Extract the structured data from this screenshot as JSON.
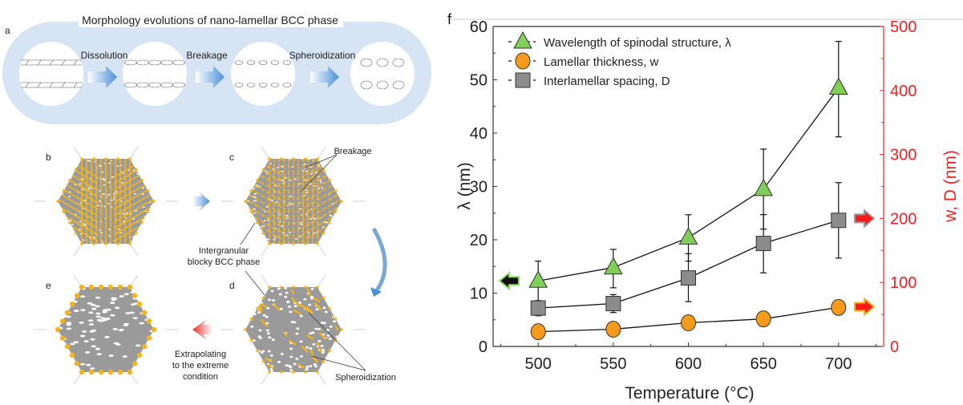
{
  "left_panel": {
    "title": "Morphology evolutions of nano-lamellar BCC phase",
    "panel_labels": {
      "a": "a",
      "b": "b",
      "c": "c",
      "d": "d",
      "e": "e"
    },
    "steps": [
      "Dissolution",
      "Breakage",
      "Spheroidization"
    ],
    "annotations": {
      "breakage": "Breakage",
      "intergranular_line1": "Intergranular",
      "intergranular_line2": "blocky BCC phase",
      "extrapolating_line1": "Extrapolating",
      "extrapolating_line2": "to the extreme",
      "extrapolating_line3": "condition",
      "spheroidization": "Spheroidization"
    },
    "colors": {
      "capsule": "#d6e4f3",
      "lamella": "#f5b51a",
      "matrix": "#9a9a9a",
      "arrow_blue": "#4a90d9",
      "arrow_red": "#e8302a"
    }
  },
  "chart_data": {
    "type": "line",
    "panel_label": "f",
    "xlabel": "Temperature (°C)",
    "ylabel": "λ (nm)",
    "y2label": "w, D (nm)",
    "x": [
      500,
      550,
      600,
      650,
      700
    ],
    "xticks": [
      500,
      550,
      600,
      650,
      700
    ],
    "xlim": [
      470,
      730
    ],
    "ylim": [
      0,
      60
    ],
    "yticks": [
      0,
      10,
      20,
      30,
      40,
      50,
      60
    ],
    "y2lim": [
      0,
      500
    ],
    "y2ticks": [
      0,
      100,
      200,
      300,
      400,
      500
    ],
    "grid": false,
    "legend_position": "top-left",
    "series": [
      {
        "name": "Wavelength of spinodal structure, λ",
        "axis": "left",
        "marker": "triangle",
        "color": "#7fcf5a",
        "values": [
          12.3,
          14.8,
          20.4,
          29.5,
          48.5
        ],
        "err_low": [
          8.6,
          11.0,
          16.0,
          22.0,
          39.3
        ],
        "err_high": [
          16.0,
          18.2,
          24.7,
          37.0,
          57.2
        ]
      },
      {
        "name": "Lamellar thickness, w",
        "axis": "right",
        "marker": "circle",
        "color": "#f59a1a",
        "values": [
          23,
          27,
          37,
          43,
          61
        ],
        "err_low": [
          16,
          19,
          29,
          35,
          56
        ],
        "err_high": [
          30,
          35,
          45,
          51,
          66
        ]
      },
      {
        "name": "Interlamellar spacing, D",
        "axis": "right",
        "marker": "square",
        "color": "#8c8c8c",
        "values": [
          60,
          67,
          107,
          161,
          197
        ],
        "err_low": [
          48,
          53,
          70,
          115,
          138
        ],
        "err_high": [
          70,
          81,
          145,
          206,
          256
        ]
      }
    ],
    "axis_colors": {
      "left": "#222222",
      "right": "#ee2222"
    }
  }
}
